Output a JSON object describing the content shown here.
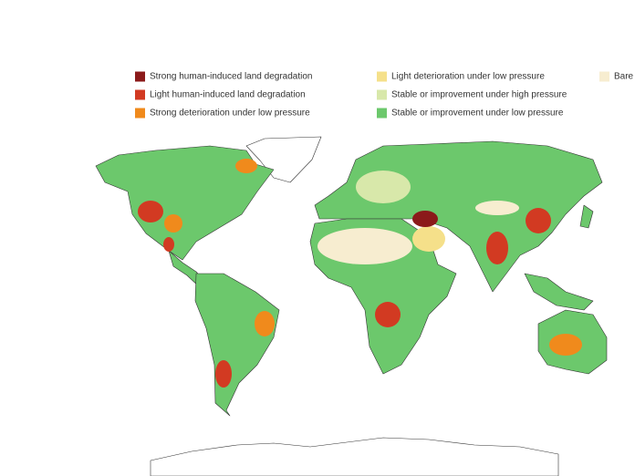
{
  "legend": [
    {
      "label": "Strong human-induced land degradation",
      "color": "#8b1a1a"
    },
    {
      "label": "Light human-induced land degradation",
      "color": "#d23a22"
    },
    {
      "label": "Strong deterioration under low pressure",
      "color": "#f08a1c"
    },
    {
      "label": "Light deterioration under low pressure",
      "color": "#f5e08a"
    },
    {
      "label": "Stable or improvement under high pressure",
      "color": "#d8e8aa"
    },
    {
      "label": "Stable or improvement under low pressure",
      "color": "#6cc86c"
    },
    {
      "label": "Bare",
      "color": "#f7edd0"
    }
  ]
}
